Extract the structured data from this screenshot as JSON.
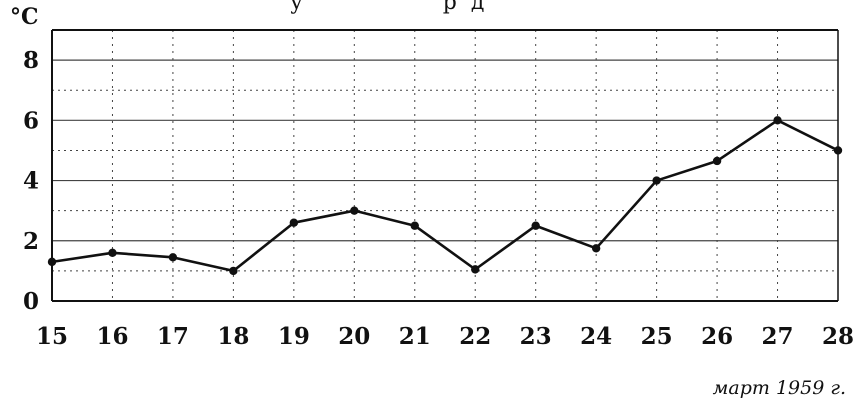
{
  "header": {
    "top_text": "у                    р  д"
  },
  "chart_data": {
    "type": "line",
    "title": "",
    "xlabel": "",
    "ylabel": "°С",
    "x": [
      "15",
      "16",
      "17",
      "18",
      "19",
      "20",
      "21",
      "22",
      "23",
      "24",
      "25",
      "26",
      "27",
      "28"
    ],
    "series": [
      {
        "values": [
          1.3,
          1.6,
          1.45,
          1.0,
          2.6,
          3.0,
          2.5,
          1.05,
          2.5,
          1.75,
          4.0,
          4.65,
          6.0,
          5.0
        ]
      }
    ],
    "ylim": [
      0,
      9
    ],
    "yticks": [
      "0",
      "2",
      "4",
      "6",
      "8"
    ],
    "grid": true,
    "legend": "none",
    "caption": "март 1959 г."
  },
  "colors": {
    "line": "#111111",
    "grid": "#444444",
    "axis": "#111111"
  }
}
